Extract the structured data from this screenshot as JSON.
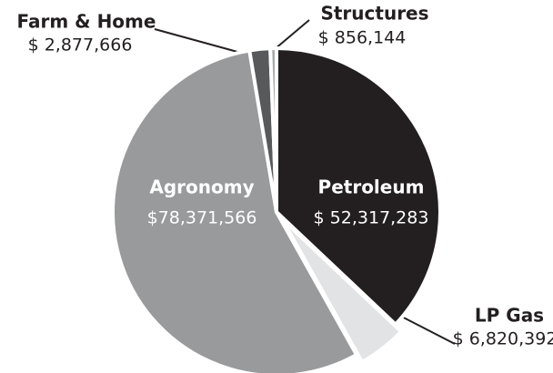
{
  "chart_data": {
    "type": "pie",
    "categories": [
      "Petroleum",
      "LP Gas",
      "Agronomy",
      "Farm & Home",
      "Structures"
    ],
    "values": [
      52317283,
      6820392,
      78371566,
      2877666,
      856144
    ],
    "value_labels": [
      "$ 52,317,283",
      "$ 6,820,392",
      "$78,371,566",
      "$ 2,877,666",
      "$ 856,144"
    ],
    "colors": [
      "#231f20",
      "#e2e3e4",
      "#999a9c",
      "#58595b",
      "#a7a9ac"
    ]
  }
}
